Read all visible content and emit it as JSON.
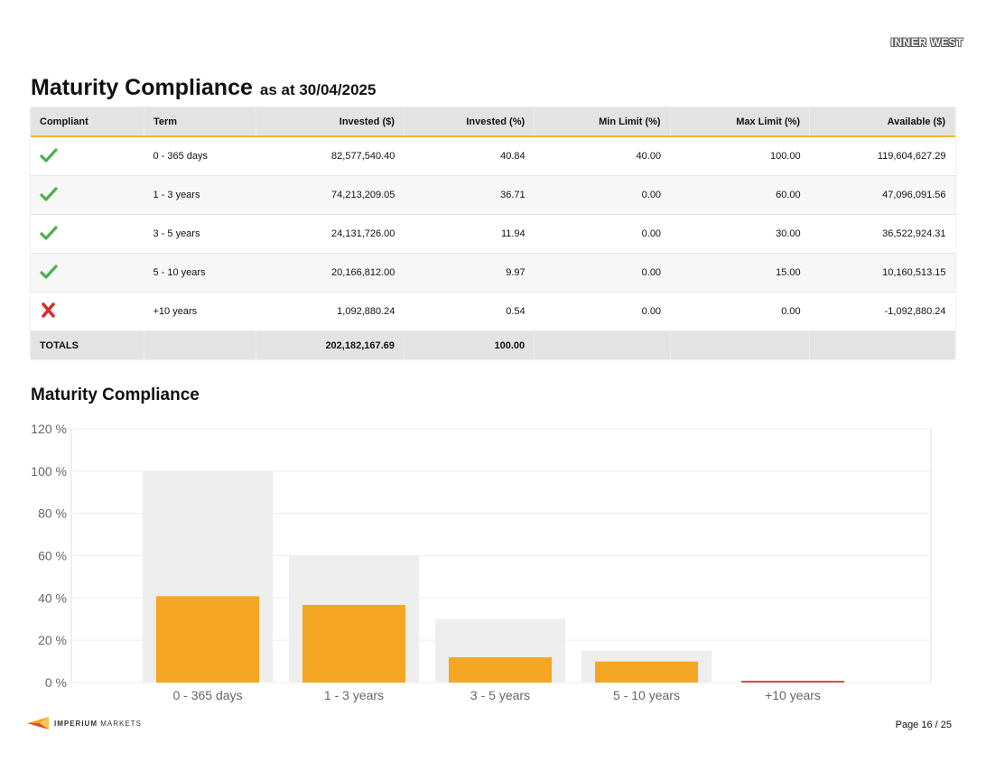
{
  "header": {
    "org_logo_text": "INNER WEST"
  },
  "page": {
    "title": "Maturity Compliance",
    "subtitle": "as at 30/04/2025"
  },
  "table": {
    "columns": [
      "Compliant",
      "Term",
      "Invested ($)",
      "Invested (%)",
      "Min Limit (%)",
      "Max Limit (%)",
      "Available ($)"
    ],
    "rows": [
      {
        "compliant": true,
        "term": "0 - 365 days",
        "invested": "82,577,540.40",
        "invested_pct": "40.84",
        "min": "40.00",
        "max": "100.00",
        "available": "119,604,627.29"
      },
      {
        "compliant": true,
        "term": "1 - 3 years",
        "invested": "74,213,209.05",
        "invested_pct": "36.71",
        "min": "0.00",
        "max": "60.00",
        "available": "47,096,091.56"
      },
      {
        "compliant": true,
        "term": "3 - 5 years",
        "invested": "24,131,726.00",
        "invested_pct": "11.94",
        "min": "0.00",
        "max": "30.00",
        "available": "36,522,924.31"
      },
      {
        "compliant": true,
        "term": "5 - 10 years",
        "invested": "20,166,812.00",
        "invested_pct": "9.97",
        "min": "0.00",
        "max": "15.00",
        "available": "10,160,513.15"
      },
      {
        "compliant": false,
        "term": "+10 years",
        "invested": "1,092,880.24",
        "invested_pct": "0.54",
        "min": "0.00",
        "max": "0.00",
        "available": "-1,092,880.24"
      }
    ],
    "totals": {
      "label": "TOTALS",
      "invested": "202,182,167.69",
      "invested_pct": "100.00"
    }
  },
  "chart_title": "Maturity Compliance",
  "chart_data": {
    "type": "bar",
    "title": "Maturity Compliance",
    "categories": [
      "0 - 365 days",
      "1 - 3 years",
      "3 - 5 years",
      "5 - 10 years",
      "+10 years"
    ],
    "series": [
      {
        "values": [
          100,
          60,
          30,
          15,
          0
        ]
      },
      {
        "values": [
          40.84,
          36.71,
          11.94,
          9.97,
          0.54
        ]
      }
    ],
    "ylim": [
      0,
      120
    ],
    "yticks": [
      0,
      20,
      40,
      60,
      80,
      100,
      120
    ],
    "ytick_suffix": " %",
    "grid": true,
    "colors": {
      "limit": "#eeeeee",
      "compliant": "#f5a623",
      "non_compliant": "#e04b4b",
      "grid": "#eeeeee",
      "frame": "#dddddd"
    }
  },
  "footer": {
    "brand_bold": "IMPERIUM",
    "brand_light": "MARKETS",
    "page_label": "Page 16 / 25"
  },
  "colors": {
    "accent": "#f5b820",
    "check": "#4caf50",
    "cross": "#d32f2f"
  }
}
